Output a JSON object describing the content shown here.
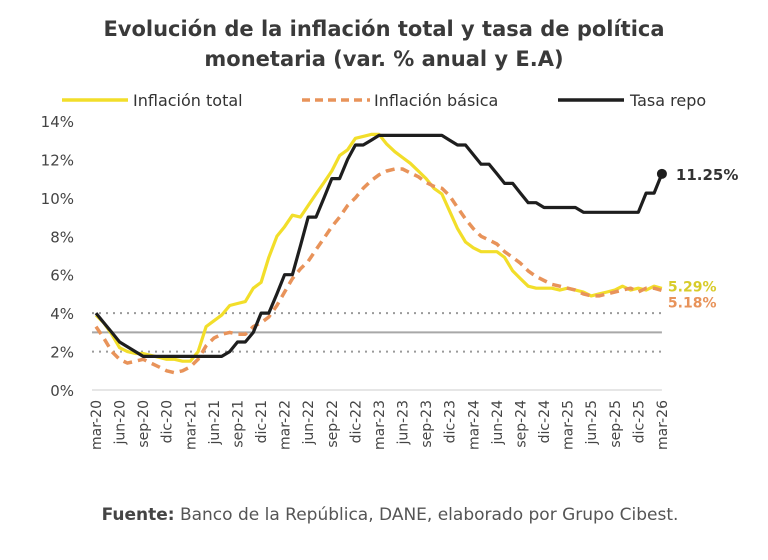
{
  "title_lines": [
    "Evolución de la inflación total y tasa de política",
    "monetaria (var. % anual y E.A)"
  ],
  "source": {
    "label": "Fuente:",
    "text": " Banco de la República, DANE, elaborado por Grupo Cibest."
  },
  "chart_data": {
    "type": "line",
    "title": "Evolución de la inflación total y tasa de política monetaria (var. % anual y E.A)",
    "xlabel": "",
    "ylabel": "",
    "ylim": [
      0,
      14
    ],
    "yticks": [
      0,
      2,
      4,
      6,
      8,
      10,
      12,
      14
    ],
    "ytick_labels": [
      "0%",
      "2%",
      "4%",
      "6%",
      "8%",
      "10%",
      "12%",
      "14%"
    ],
    "x_tick_labels": [
      "mar-20",
      "jun-20",
      "sep-20",
      "dic-20",
      "mar-21",
      "jun-21",
      "sep-21",
      "dic-21",
      "mar-22",
      "jun-22",
      "sep-22",
      "dic-22",
      "mar-23",
      "jun-23",
      "sep-23",
      "dic-23",
      "mar-24",
      "jun-24",
      "sep-24",
      "dic-24",
      "mar-25",
      "jun-25",
      "sep-25",
      "dic-25",
      "mar-26"
    ],
    "x_unit": "quarter index (0 = mar-20)",
    "legend_position": "top",
    "reference_lines": [
      {
        "value": 4,
        "style": "dotted",
        "color": "#9a9a9a"
      },
      {
        "value": 3,
        "style": "solid",
        "color": "#a8a8a8"
      },
      {
        "value": 2,
        "style": "dotted",
        "color": "#9a9a9a"
      }
    ],
    "series": [
      {
        "name": "Inflación total",
        "color": "#f2de2a",
        "style": "solid",
        "x": [
          0,
          0.33,
          0.67,
          1,
          1.33,
          1.67,
          2,
          2.33,
          2.67,
          3,
          3.33,
          3.67,
          4,
          4.33,
          4.67,
          5,
          5.33,
          5.67,
          6,
          6.33,
          6.67,
          7,
          7.33,
          7.67,
          8,
          8.33,
          8.67,
          9,
          9.33,
          9.67,
          10,
          10.33,
          10.67,
          11,
          11.33,
          11.67,
          12,
          12.33,
          12.67,
          13,
          13.33,
          13.67,
          14,
          14.33,
          14.67,
          15,
          15.33,
          15.67,
          16,
          16.33,
          16.67,
          17,
          17.33,
          17.67,
          18,
          18.33,
          18.67,
          19,
          19.33,
          19.67,
          20,
          20.33,
          20.67,
          21,
          21.33,
          21.67,
          22,
          22.33,
          22.67,
          23,
          23.33,
          23.67,
          24
        ],
        "values": [
          3.9,
          3.5,
          2.9,
          2.2,
          2.0,
          1.9,
          1.9,
          1.8,
          1.7,
          1.6,
          1.6,
          1.5,
          1.5,
          2.0,
          3.3,
          3.6,
          3.9,
          4.4,
          4.5,
          4.6,
          5.3,
          5.6,
          6.9,
          8.0,
          8.5,
          9.1,
          9.0,
          9.6,
          10.2,
          10.8,
          11.4,
          12.2,
          12.5,
          13.1,
          13.2,
          13.3,
          13.3,
          12.8,
          12.4,
          12.1,
          11.8,
          11.4,
          11.0,
          10.5,
          10.2,
          9.3,
          8.4,
          7.7,
          7.4,
          7.2,
          7.2,
          7.2,
          6.9,
          6.2,
          5.8,
          5.4,
          5.3,
          5.3,
          5.3,
          5.2,
          5.3,
          5.2,
          5.1,
          4.9,
          5.0,
          5.1,
          5.2,
          5.4,
          5.2,
          5.3,
          5.2,
          5.4,
          5.29
        ]
      },
      {
        "name": "Inflación básica",
        "color": "#e8935a",
        "style": "dashed",
        "x": [
          0,
          0.33,
          0.67,
          1,
          1.33,
          1.67,
          2,
          2.33,
          2.67,
          3,
          3.33,
          3.67,
          4,
          4.33,
          4.67,
          5,
          5.33,
          5.67,
          6,
          6.33,
          6.67,
          7,
          7.33,
          7.67,
          8,
          8.33,
          8.67,
          9,
          9.33,
          9.67,
          10,
          10.33,
          10.67,
          11,
          11.33,
          11.67,
          12,
          12.33,
          12.67,
          13,
          13.33,
          13.67,
          14,
          14.33,
          14.67,
          15,
          15.33,
          15.67,
          16,
          16.33,
          16.67,
          17,
          17.33,
          17.67,
          18,
          18.33,
          18.67,
          19,
          19.33,
          19.67,
          20,
          20.33,
          20.67,
          21,
          21.33,
          21.67,
          22,
          22.33,
          22.67,
          23,
          23.33,
          23.67,
          24
        ],
        "values": [
          3.3,
          2.7,
          2.0,
          1.6,
          1.4,
          1.5,
          1.6,
          1.4,
          1.2,
          1.0,
          0.9,
          1.0,
          1.2,
          1.6,
          2.3,
          2.7,
          2.9,
          3.0,
          2.9,
          2.9,
          3.3,
          3.5,
          3.8,
          4.4,
          5.1,
          5.8,
          6.3,
          6.7,
          7.3,
          7.9,
          8.5,
          9.0,
          9.6,
          10.0,
          10.5,
          10.9,
          11.2,
          11.4,
          11.5,
          11.5,
          11.3,
          11.1,
          10.8,
          10.6,
          10.5,
          10.1,
          9.5,
          8.9,
          8.4,
          8.0,
          7.8,
          7.6,
          7.2,
          6.9,
          6.6,
          6.2,
          5.9,
          5.7,
          5.5,
          5.4,
          5.3,
          5.2,
          5.0,
          4.9,
          4.9,
          5.0,
          5.1,
          5.2,
          5.3,
          5.1,
          5.3,
          5.3,
          5.18
        ]
      },
      {
        "name": "Tasa repo",
        "color": "#1e1e1e",
        "style": "solid",
        "x": [
          0,
          0.33,
          0.67,
          1,
          1.33,
          1.67,
          2,
          2.33,
          2.67,
          3,
          3.33,
          3.67,
          4,
          4.33,
          4.67,
          5,
          5.33,
          5.67,
          6,
          6.33,
          6.67,
          7,
          7.33,
          7.67,
          8,
          8.33,
          8.67,
          9,
          9.33,
          9.67,
          10,
          10.33,
          10.67,
          11,
          11.33,
          11.67,
          12,
          12.33,
          12.67,
          13,
          13.33,
          13.67,
          14,
          14.33,
          14.67,
          15,
          15.33,
          15.67,
          16,
          16.33,
          16.67,
          17,
          17.33,
          17.67,
          18,
          18.33,
          18.67,
          19,
          19.33,
          19.67,
          20,
          20.33,
          20.67,
          21,
          21.33,
          21.67,
          22,
          22.33,
          22.67,
          23,
          23.33,
          23.67,
          24
        ],
        "values": [
          4.0,
          3.5,
          3.0,
          2.5,
          2.25,
          2.0,
          1.75,
          1.75,
          1.75,
          1.75,
          1.75,
          1.75,
          1.75,
          1.75,
          1.75,
          1.75,
          1.75,
          2.0,
          2.5,
          2.5,
          3.0,
          4.0,
          4.0,
          5.0,
          6.0,
          6.0,
          7.5,
          9.0,
          9.0,
          10.0,
          11.0,
          11.0,
          12.0,
          12.75,
          12.75,
          13.0,
          13.25,
          13.25,
          13.25,
          13.25,
          13.25,
          13.25,
          13.25,
          13.25,
          13.25,
          13.0,
          12.75,
          12.75,
          12.25,
          11.75,
          11.75,
          11.25,
          10.75,
          10.75,
          10.25,
          9.75,
          9.75,
          9.5,
          9.5,
          9.5,
          9.5,
          9.5,
          9.25,
          9.25,
          9.25,
          9.25,
          9.25,
          9.25,
          9.25,
          9.25,
          10.25,
          10.25,
          11.25
        ]
      }
    ],
    "annotations": [
      {
        "text": "11.25%",
        "series": "Tasa repo",
        "value": 11.25,
        "color": "#333333"
      },
      {
        "text": "5.29%",
        "series": "Inflación total",
        "value": 5.29,
        "color": "#d8cc2a"
      },
      {
        "text": "5.18%",
        "series": "Inflación básica",
        "value": 5.18,
        "color": "#e8935a"
      }
    ]
  }
}
